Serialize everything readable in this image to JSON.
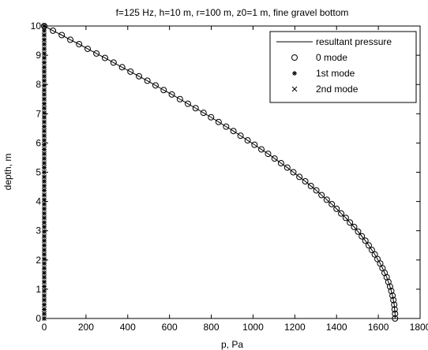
{
  "chart_data": {
    "type": "line",
    "title": "f=125 Hz, h=10 m, r=100 m, z0=1 m, fine gravel bottom",
    "xlabel": "p, Pa",
    "ylabel": "depth, m",
    "xlim": [
      0,
      1800
    ],
    "ylim": [
      0,
      10
    ],
    "xticks": [
      0,
      200,
      400,
      600,
      800,
      1000,
      1200,
      1400,
      1600,
      1800
    ],
    "yticks": [
      0,
      1,
      2,
      3,
      4,
      5,
      6,
      7,
      8,
      9,
      10
    ],
    "grid": false,
    "legend_position": "top-right",
    "legend": [
      {
        "label": "resultant pressure",
        "marker": "line"
      },
      {
        "label": "0 mode",
        "marker": "circle"
      },
      {
        "label": "1st mode",
        "marker": "star"
      },
      {
        "label": "2nd mode",
        "marker": "x"
      }
    ],
    "series": [
      {
        "name": "resultant pressure",
        "style": "line",
        "x": [
          0,
          42,
          84,
          125,
          167,
          208,
          250,
          291,
          332,
          373,
          413,
          454,
          494,
          533,
          572,
          611,
          650,
          688,
          725,
          763,
          799,
          835,
          871,
          906,
          940,
          974,
          1007,
          1040,
          1072,
          1103,
          1134,
          1164,
          1193,
          1222,
          1250,
          1277,
          1303,
          1328,
          1353,
          1377,
          1400,
          1422,
          1444,
          1464,
          1484,
          1503,
          1521,
          1538,
          1554,
          1569,
          1583,
          1596,
          1609,
          1620,
          1630,
          1640,
          1648,
          1656,
          1662,
          1668,
          1672,
          1676,
          1678,
          1680,
          1680
        ],
        "y": [
          10,
          9.84,
          9.69,
          9.53,
          9.38,
          9.22,
          9.06,
          8.91,
          8.75,
          8.59,
          8.44,
          8.28,
          8.13,
          7.97,
          7.81,
          7.66,
          7.5,
          7.34,
          7.19,
          7.03,
          6.88,
          6.72,
          6.56,
          6.41,
          6.25,
          6.09,
          5.94,
          5.78,
          5.63,
          5.47,
          5.31,
          5.16,
          5,
          4.84,
          4.69,
          4.53,
          4.38,
          4.22,
          4.06,
          3.91,
          3.75,
          3.59,
          3.44,
          3.28,
          3.13,
          2.97,
          2.81,
          2.66,
          2.5,
          2.34,
          2.19,
          2.03,
          1.88,
          1.72,
          1.56,
          1.41,
          1.25,
          1.09,
          0.94,
          0.78,
          0.63,
          0.47,
          0.31,
          0.16,
          0
        ]
      },
      {
        "name": "0 mode",
        "style": "circle",
        "x": [
          0,
          42,
          84,
          125,
          167,
          208,
          250,
          291,
          332,
          373,
          413,
          454,
          494,
          533,
          572,
          611,
          650,
          688,
          725,
          763,
          799,
          835,
          871,
          906,
          940,
          974,
          1007,
          1040,
          1072,
          1103,
          1134,
          1164,
          1193,
          1222,
          1250,
          1277,
          1303,
          1328,
          1353,
          1377,
          1400,
          1422,
          1444,
          1464,
          1484,
          1503,
          1521,
          1538,
          1554,
          1569,
          1583,
          1596,
          1609,
          1620,
          1630,
          1640,
          1648,
          1656,
          1662,
          1668,
          1672,
          1676,
          1678,
          1680,
          1680
        ],
        "y": [
          10,
          9.84,
          9.69,
          9.53,
          9.38,
          9.22,
          9.06,
          8.91,
          8.75,
          8.59,
          8.44,
          8.28,
          8.13,
          7.97,
          7.81,
          7.66,
          7.5,
          7.34,
          7.19,
          7.03,
          6.88,
          6.72,
          6.56,
          6.41,
          6.25,
          6.09,
          5.94,
          5.78,
          5.63,
          5.47,
          5.31,
          5.16,
          5,
          4.84,
          4.69,
          4.53,
          4.38,
          4.22,
          4.06,
          3.91,
          3.75,
          3.59,
          3.44,
          3.28,
          3.13,
          2.97,
          2.81,
          2.66,
          2.5,
          2.34,
          2.19,
          2.03,
          1.88,
          1.72,
          1.56,
          1.41,
          1.25,
          1.09,
          0.94,
          0.78,
          0.63,
          0.47,
          0.31,
          0.16,
          0
        ]
      },
      {
        "name": "1st mode",
        "style": "star",
        "x": [
          0,
          0,
          0,
          0,
          0,
          0,
          0,
          0,
          0,
          0,
          0,
          0,
          0,
          0,
          0,
          0,
          0,
          0,
          0,
          0,
          0,
          0,
          0,
          0,
          0,
          0,
          0,
          0,
          0,
          0,
          0,
          0,
          0,
          0,
          0,
          0,
          0,
          0,
          0,
          0,
          0,
          0,
          0,
          0,
          0,
          0,
          0,
          0,
          0,
          0,
          0,
          0,
          0,
          0,
          0,
          0,
          0,
          0,
          0,
          0,
          0,
          0,
          0,
          0,
          0
        ],
        "y": [
          10,
          9.84,
          9.69,
          9.53,
          9.38,
          9.22,
          9.06,
          8.91,
          8.75,
          8.59,
          8.44,
          8.28,
          8.13,
          7.97,
          7.81,
          7.66,
          7.5,
          7.34,
          7.19,
          7.03,
          6.88,
          6.72,
          6.56,
          6.41,
          6.25,
          6.09,
          5.94,
          5.78,
          5.63,
          5.47,
          5.31,
          5.16,
          5,
          4.84,
          4.69,
          4.53,
          4.38,
          4.22,
          4.06,
          3.91,
          3.75,
          3.59,
          3.44,
          3.28,
          3.13,
          2.97,
          2.81,
          2.66,
          2.5,
          2.34,
          2.19,
          2.03,
          1.88,
          1.72,
          1.56,
          1.41,
          1.25,
          1.09,
          0.94,
          0.78,
          0.63,
          0.47,
          0.31,
          0.16,
          0
        ]
      },
      {
        "name": "2nd mode",
        "style": "x",
        "x": [
          0,
          0,
          0,
          0,
          0,
          0,
          0,
          0,
          0,
          0,
          0,
          0,
          0,
          0,
          0,
          0,
          0,
          0,
          0,
          0,
          0,
          0,
          0,
          0,
          0,
          0,
          0,
          0,
          0,
          0,
          0,
          0,
          0,
          0,
          0,
          0,
          0,
          0,
          0,
          0,
          0,
          0,
          0,
          0,
          0,
          0,
          0,
          0,
          0,
          0,
          0,
          0,
          0,
          0,
          0,
          0,
          0,
          0,
          0,
          0,
          0,
          0,
          0,
          0,
          0
        ],
        "y": [
          10,
          9.84,
          9.69,
          9.53,
          9.38,
          9.22,
          9.06,
          8.91,
          8.75,
          8.59,
          8.44,
          8.28,
          8.13,
          7.97,
          7.81,
          7.66,
          7.5,
          7.34,
          7.19,
          7.03,
          6.88,
          6.72,
          6.56,
          6.41,
          6.25,
          6.09,
          5.94,
          5.78,
          5.63,
          5.47,
          5.31,
          5.16,
          5,
          4.84,
          4.69,
          4.53,
          4.38,
          4.22,
          4.06,
          3.91,
          3.75,
          3.59,
          3.44,
          3.28,
          3.13,
          2.97,
          2.81,
          2.66,
          2.5,
          2.34,
          2.19,
          2.03,
          1.88,
          1.72,
          1.56,
          1.41,
          1.25,
          1.09,
          0.94,
          0.78,
          0.63,
          0.47,
          0.31,
          0.16,
          0
        ]
      }
    ]
  }
}
